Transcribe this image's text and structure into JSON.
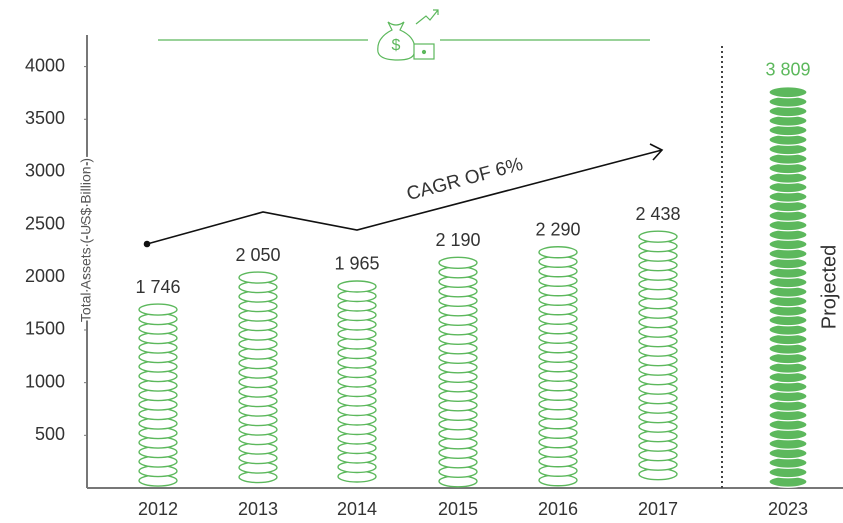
{
  "chart_data": {
    "type": "coin-bar",
    "y_axis_label": "Total Assets ( US$ Billion )",
    "annotation": "CAGR OF 6%",
    "projection_label": "Projected",
    "categories": [
      "2012",
      "2013",
      "2014",
      "2015",
      "2016",
      "2017",
      "2023"
    ],
    "values": [
      1746,
      2050,
      1965,
      2190,
      2290,
      2438,
      3809
    ],
    "value_labels": [
      "1 746",
      "2 050",
      "1 965",
      "2 190",
      "2 290",
      "2 438",
      "3 809"
    ],
    "color": "#5cb85c",
    "filled": [
      false,
      false,
      false,
      false,
      false,
      false,
      true
    ],
    "ylim": [
      0,
      4300
    ],
    "yticks": [
      500,
      1000,
      1500,
      2000,
      2500,
      3000,
      3500,
      4000
    ]
  }
}
